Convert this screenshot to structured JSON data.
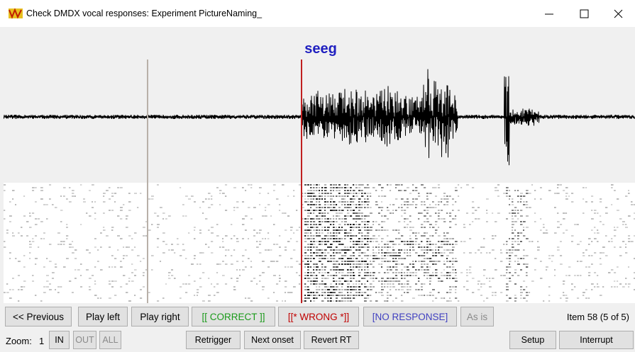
{
  "window": {
    "title": "Check DMDX vocal responses: Experiment PictureNaming_"
  },
  "display": {
    "word": "seeg"
  },
  "buttons_row1": [
    "<< Previous",
    "Play left",
    "Play right",
    "[[ CORRECT ]]",
    "[[* WRONG *]]",
    "[NO RESPONSE]",
    "As is"
  ],
  "status": "Item 58 (5 of 5)",
  "zoom": {
    "label": "Zoom:",
    "level": "1",
    "buttons": [
      "IN",
      "OUT",
      "ALL"
    ]
  },
  "buttons_row2": [
    "Retrigger",
    "Next onset",
    "Revert RT",
    "Setup",
    "Interrupt"
  ]
}
